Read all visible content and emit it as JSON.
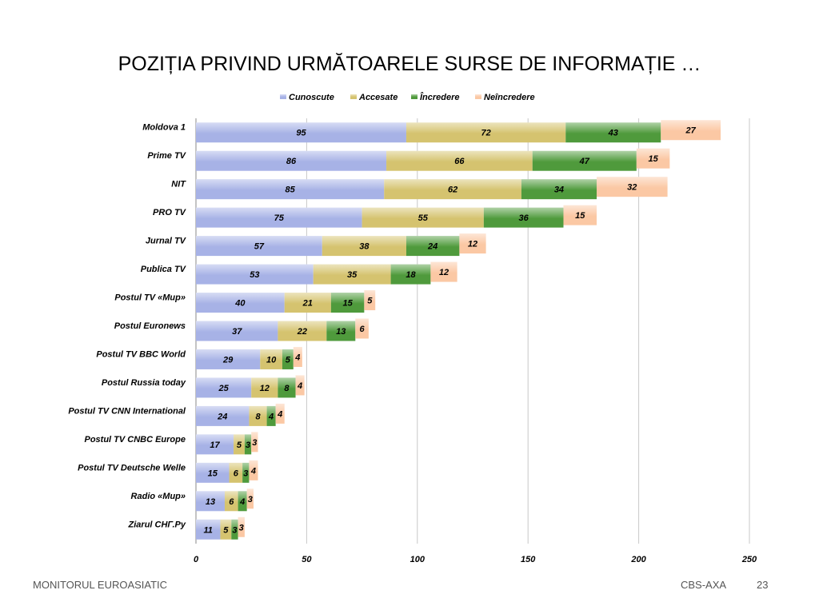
{
  "title": "POZIȚIA PRIVIND URMĂTOARELE SURSE DE INFORMAȚIE …",
  "footer": {
    "left": "MONITORUL  EUROASIATIC",
    "right": "CBS-AXA",
    "page": "23"
  },
  "colors": {
    "Cunoscute": "#a7b2e6",
    "Accesate": "#d5c36f",
    "Încredere": "#4f9a3c",
    "Neîncredere": "#fbc8a4"
  },
  "chart_data": {
    "type": "bar",
    "orientation": "horizontal",
    "stacked": true,
    "title": "",
    "xlabel": "",
    "ylabel": "",
    "xlim": [
      0,
      250
    ],
    "xticks": [
      0,
      50,
      100,
      150,
      200,
      250
    ],
    "grid": true,
    "legend": "top",
    "categories": [
      "Moldova 1",
      "Prime TV",
      "NIT",
      "PRO TV",
      "Jurnal TV",
      "Publica TV",
      "Postul TV «Мир»",
      "Postul Euronews",
      "Postul TV BBC World",
      "Postul Russia today",
      "Postul TV CNN International",
      "Postul TV CNBC Europe",
      "Postul TV Deutsche Welle",
      "Radio «Мир»",
      "Ziarul СНГ.Ру"
    ],
    "series": [
      {
        "name": "Cunoscute",
        "values": [
          95,
          86,
          85,
          75,
          57,
          53,
          40,
          37,
          29,
          25,
          24,
          17,
          15,
          13,
          11
        ]
      },
      {
        "name": "Accesate",
        "values": [
          72,
          66,
          62,
          55,
          38,
          35,
          21,
          22,
          10,
          12,
          8,
          5,
          6,
          6,
          5
        ]
      },
      {
        "name": "Încredere",
        "values": [
          43,
          47,
          34,
          36,
          24,
          18,
          15,
          13,
          5,
          8,
          4,
          3,
          3,
          4,
          3
        ]
      },
      {
        "name": "Neîncredere",
        "values": [
          27,
          15,
          32,
          15,
          12,
          12,
          5,
          6,
          4,
          4,
          4,
          3,
          4,
          3,
          3
        ]
      }
    ]
  }
}
